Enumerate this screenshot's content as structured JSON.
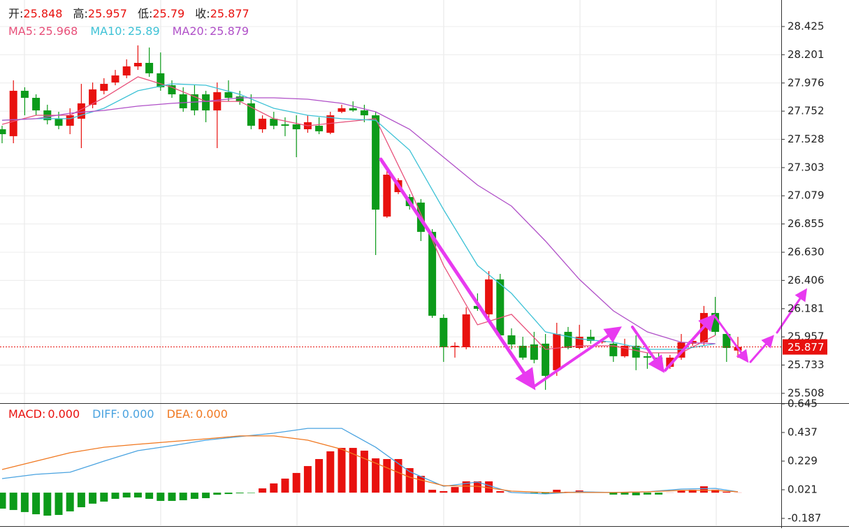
{
  "chart_data": [
    {
      "type": "candlestick",
      "quote_labels": [
        "开:",
        "高:",
        "低:",
        "收:"
      ],
      "up_color": "#e8110e",
      "down_color": "#0c9b1a",
      "grid": true,
      "ylim": [
        25.43,
        28.636
      ],
      "yticks": [
        28.425,
        28.201,
        27.976,
        27.752,
        27.528,
        27.303,
        27.079,
        26.855,
        {
          "value": 26.63,
          "label": "26.630"
        },
        26.406,
        26.181,
        25.957,
        25.733,
        25.508
      ],
      "open": [
        27.608,
        27.553,
        27.914,
        27.858,
        27.758,
        27.692,
        27.636,
        27.692,
        27.803,
        27.914,
        27.98,
        28.036,
        28.108,
        28.136,
        28.053,
        27.958,
        27.886,
        27.886,
        27.886,
        27.758,
        27.903,
        27.869,
        27.814,
        27.608,
        27.692,
        27.647,
        27.647,
        27.608,
        27.636,
        27.58,
        27.747,
        27.775,
        27.758,
        27.719,
        26.914,
        27.108,
        27.069,
        27.025,
        26.792,
        26.108,
        25.875,
        25.875,
        26.203,
        26.136,
        26.414,
        25.969,
        25.886,
        25.897,
        25.903,
        25.692,
        25.997,
        25.869,
        25.958,
        25.914,
        25.903,
        25.803,
        25.886,
        25.803,
        25.792,
        25.719,
        25.792,
        25.903,
        25.914,
        26.147,
        25.98,
        25.848
      ],
      "high": [
        27.636,
        27.997,
        27.942,
        27.886,
        27.803,
        27.747,
        27.775,
        27.969,
        27.98,
        28.014,
        28.08,
        28.164,
        28.275,
        28.258,
        28.219,
        27.997,
        27.942,
        27.958,
        27.914,
        27.98,
        27.997,
        27.914,
        27.886,
        27.719,
        27.747,
        27.703,
        27.719,
        27.719,
        27.703,
        27.747,
        27.803,
        27.83,
        27.803,
        27.747,
        27.275,
        27.219,
        27.092,
        27.053,
        26.814,
        26.136,
        25.914,
        26.192,
        26.303,
        26.48,
        26.458,
        26.025,
        25.958,
        25.997,
        25.98,
        26.069,
        26.036,
        26.053,
        26.014,
        25.942,
        25.98,
        25.942,
        25.969,
        25.83,
        25.83,
        25.814,
        25.98,
        25.942,
        26.203,
        26.275,
        25.997,
        25.957
      ],
      "low": [
        27.497,
        27.497,
        27.719,
        27.719,
        27.647,
        27.608,
        27.569,
        27.458,
        27.775,
        27.886,
        27.958,
        28.014,
        28.08,
        28.025,
        27.914,
        27.858,
        27.747,
        27.719,
        27.664,
        27.458,
        27.83,
        27.803,
        27.608,
        27.58,
        27.608,
        27.553,
        27.386,
        27.58,
        27.569,
        27.569,
        27.736,
        27.747,
        27.664,
        26.608,
        26.903,
        27.092,
        26.969,
        26.719,
        26.108,
        25.758,
        25.792,
        25.858,
        26.164,
        26.108,
        25.942,
        25.858,
        25.775,
        25.747,
        25.536,
        25.647,
        25.858,
        25.858,
        25.903,
        25.903,
        25.758,
        25.792,
        25.692,
        25.703,
        25.719,
        25.703,
        25.775,
        25.886,
        25.886,
        25.969,
        25.758,
        25.79
      ],
      "close": [
        27.569,
        27.914,
        27.858,
        27.758,
        27.68,
        27.636,
        27.719,
        27.814,
        27.925,
        27.969,
        28.036,
        28.108,
        28.136,
        28.053,
        27.942,
        27.886,
        27.775,
        27.758,
        27.758,
        27.903,
        27.858,
        27.83,
        27.636,
        27.692,
        27.636,
        27.636,
        27.608,
        27.664,
        27.592,
        27.719,
        27.775,
        27.758,
        27.719,
        26.969,
        27.247,
        27.203,
        26.997,
        26.792,
        26.125,
        25.875,
        25.886,
        26.136,
        26.18,
        26.414,
        25.969,
        25.897,
        25.792,
        25.775,
        25.647,
        25.98,
        25.869,
        25.958,
        25.925,
        25.925,
        25.803,
        25.886,
        25.792,
        25.792,
        25.736,
        25.792,
        25.914,
        25.925,
        26.147,
        25.997,
        25.869,
        25.877
      ],
      "series": [
        {
          "name": "MA5:",
          "legend_value": 25.968,
          "color": "#e8507a",
          "x": [
            0,
            3,
            6,
            9,
            12,
            15,
            18,
            21,
            24,
            27,
            30,
            33,
            36,
            39,
            42,
            45,
            48,
            51,
            54,
            57,
            60,
            63
          ],
          "values": [
            27.647,
            27.719,
            27.719,
            27.858,
            28.025,
            27.942,
            27.83,
            27.83,
            27.692,
            27.636,
            27.664,
            27.692,
            27.136,
            26.525,
            26.053,
            26.136,
            25.858,
            25.886,
            25.886,
            25.83,
            25.83,
            25.969
          ]
        },
        {
          "name": "MA10:",
          "legend_value": 25.89,
          "color": "#3ec2d6",
          "x": [
            0,
            3,
            6,
            9,
            12,
            15,
            18,
            21,
            24,
            27,
            30,
            33,
            36,
            39,
            42,
            45,
            48,
            51,
            54,
            57,
            60,
            63
          ],
          "values": [
            27.68,
            27.692,
            27.692,
            27.775,
            27.914,
            27.969,
            27.958,
            27.886,
            27.775,
            27.719,
            27.692,
            27.68,
            27.442,
            26.969,
            26.525,
            26.303,
            25.997,
            25.942,
            25.914,
            25.858,
            25.858,
            25.903
          ]
        },
        {
          "name": "MA20:",
          "legend_value": 25.879,
          "color": "#b050c8",
          "x": [
            0,
            3,
            6,
            9,
            12,
            15,
            18,
            21,
            24,
            27,
            30,
            33,
            36,
            39,
            42,
            45,
            48,
            51,
            54,
            57,
            60,
            63
          ],
          "values": [
            27.68,
            27.692,
            27.736,
            27.758,
            27.792,
            27.814,
            27.83,
            27.858,
            27.858,
            27.847,
            27.814,
            27.747,
            27.608,
            27.386,
            27.164,
            26.997,
            26.719,
            26.414,
            26.164,
            25.997,
            25.914,
            25.903
          ]
        }
      ]
    },
    {
      "type": "macd",
      "name": "MACD:",
      "legend_value": "0.000",
      "up_color": "#e8110e",
      "down_color": "#0c9b1a",
      "ylim": [
        -0.238,
        0.645
      ],
      "yticks": [
        0.645,
        0.437,
        0.229,
        0.021,
        -0.187
      ],
      "values": [
        -0.116,
        -0.126,
        -0.141,
        -0.157,
        -0.167,
        -0.162,
        -0.136,
        -0.106,
        -0.08,
        -0.065,
        -0.045,
        -0.035,
        -0.035,
        -0.045,
        -0.06,
        -0.06,
        -0.055,
        -0.045,
        -0.04,
        -0.015,
        -0.01,
        -0.005,
        -0.003,
        0.031,
        0.067,
        0.102,
        0.143,
        0.193,
        0.244,
        0.3,
        0.325,
        0.325,
        0.305,
        0.249,
        0.244,
        0.244,
        0.178,
        0.122,
        0.021,
        0.011,
        0.041,
        0.082,
        0.082,
        0.082,
        0.011,
        0.001,
        -0.004,
        -0.004,
        -0.009,
        0.021,
        0.006,
        0.016,
        0.006,
        0.001,
        -0.014,
        -0.014,
        -0.019,
        -0.014,
        -0.014,
        0.001,
        0.016,
        0.021,
        0.046,
        0.021,
        0.006,
        0.001
      ],
      "series": [
        {
          "name": "DIFF:",
          "legend_value": "0.000",
          "color": "#4aa3e0",
          "x": [
            0,
            3,
            6,
            9,
            12,
            15,
            18,
            21,
            24,
            27,
            30,
            33,
            36,
            39,
            42,
            45,
            48,
            51,
            54,
            57,
            60,
            63,
            65
          ],
          "values": [
            0.102,
            0.133,
            0.148,
            0.229,
            0.305,
            0.341,
            0.381,
            0.407,
            0.432,
            0.467,
            0.467,
            0.33,
            0.153,
            0.046,
            0.077,
            0.001,
            -0.009,
            0.006,
            0.001,
            0.006,
            0.026,
            0.031,
            0.006
          ]
        },
        {
          "name": "DEA:",
          "legend_value": "0.000",
          "color": "#f07820",
          "x": [
            0,
            3,
            6,
            9,
            12,
            15,
            18,
            21,
            24,
            27,
            30,
            33,
            36,
            39,
            42,
            45,
            48,
            51,
            54,
            57,
            60,
            63,
            65
          ],
          "values": [
            0.168,
            0.229,
            0.29,
            0.33,
            0.351,
            0.371,
            0.391,
            0.412,
            0.412,
            0.381,
            0.315,
            0.214,
            0.112,
            0.051,
            0.046,
            0.011,
            0.001,
            0.001,
            0.001,
            0.006,
            0.016,
            0.016,
            0.006
          ]
        }
      ]
    }
  ]
}
